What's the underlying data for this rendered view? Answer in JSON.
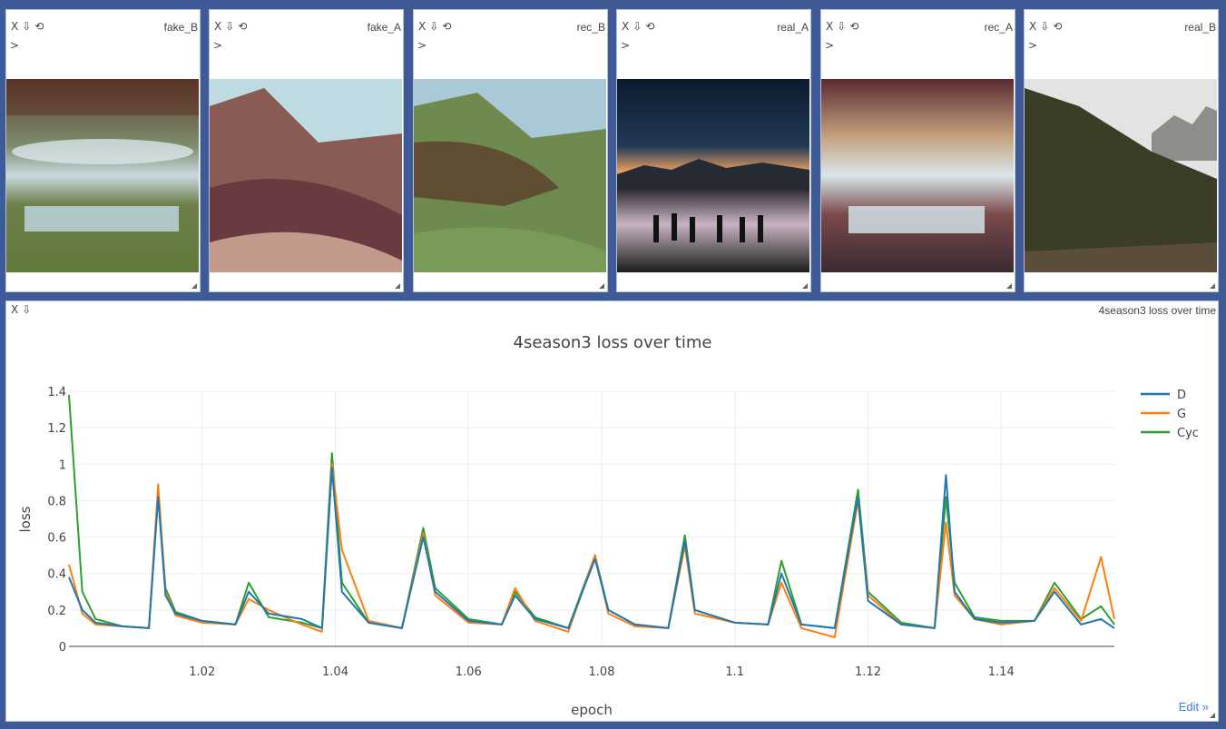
{
  "panes": [
    {
      "title": "fake_B",
      "controls": [
        "X",
        "⇩",
        "⟲"
      ],
      "prompt": ">"
    },
    {
      "title": "fake_A",
      "controls": [
        "X",
        "⇩",
        "⟲"
      ],
      "prompt": ">"
    },
    {
      "title": "rec_B",
      "controls": [
        "X",
        "⇩",
        "⟲"
      ],
      "prompt": ">"
    },
    {
      "title": "real_A",
      "controls": [
        "X",
        "⇩",
        "⟲"
      ],
      "prompt": ">"
    },
    {
      "title": "rec_A",
      "controls": [
        "X",
        "⇩",
        "⟲"
      ],
      "prompt": ">"
    },
    {
      "title": "real_B",
      "controls": [
        "X",
        "⇩",
        "⟲"
      ],
      "prompt": ">"
    }
  ],
  "chart_pane": {
    "title": "4season3 loss over time",
    "controls": [
      "X",
      "⇩"
    ],
    "edit_link": "Edit »"
  },
  "chart_data": {
    "type": "line",
    "title": "4season3 loss over time",
    "xlabel": "epoch",
    "ylabel": "loss",
    "xlim": [
      1.0,
      1.157
    ],
    "ylim": [
      0,
      1.4
    ],
    "x_ticks": [
      1.02,
      1.04,
      1.06,
      1.08,
      1.1,
      1.12,
      1.14
    ],
    "x_tick_labels": [
      "1.02",
      "1.04",
      "1.06",
      "1.08",
      "1.1",
      "1.12",
      "1.14"
    ],
    "y_ticks": [
      0,
      0.2,
      0.4,
      0.6,
      0.8,
      1,
      1.2,
      1.4
    ],
    "y_tick_labels": [
      "0",
      "0.2",
      "0.4",
      "0.6",
      "0.8",
      "1",
      "1.2",
      "1.4"
    ],
    "grid": true,
    "legend_position": "top-right",
    "series": [
      {
        "name": "D",
        "color": "#1f77b4",
        "x": [
          1.0,
          1.002,
          1.004,
          1.008,
          1.012,
          1.0134,
          1.0145,
          1.016,
          1.02,
          1.025,
          1.027,
          1.03,
          1.035,
          1.038,
          1.0395,
          1.041,
          1.045,
          1.05,
          1.0532,
          1.055,
          1.06,
          1.065,
          1.067,
          1.07,
          1.075,
          1.079,
          1.081,
          1.085,
          1.09,
          1.0925,
          1.094,
          1.1,
          1.105,
          1.107,
          1.11,
          1.115,
          1.1185,
          1.12,
          1.125,
          1.13,
          1.1317,
          1.133,
          1.136,
          1.14,
          1.145,
          1.148,
          1.152,
          1.155,
          1.157
        ],
        "y": [
          0.38,
          0.2,
          0.13,
          0.11,
          0.1,
          0.82,
          0.28,
          0.18,
          0.14,
          0.12,
          0.3,
          0.18,
          0.15,
          0.1,
          0.98,
          0.3,
          0.13,
          0.1,
          0.6,
          0.3,
          0.14,
          0.12,
          0.28,
          0.15,
          0.1,
          0.48,
          0.2,
          0.12,
          0.1,
          0.58,
          0.2,
          0.13,
          0.12,
          0.4,
          0.12,
          0.1,
          0.82,
          0.25,
          0.12,
          0.1,
          0.94,
          0.3,
          0.15,
          0.13,
          0.14,
          0.3,
          0.12,
          0.15,
          0.1
        ]
      },
      {
        "name": "G",
        "color": "#ff7f0e",
        "x": [
          1.0,
          1.002,
          1.004,
          1.008,
          1.012,
          1.0134,
          1.0145,
          1.016,
          1.02,
          1.025,
          1.027,
          1.03,
          1.035,
          1.038,
          1.0395,
          1.041,
          1.045,
          1.05,
          1.0532,
          1.055,
          1.06,
          1.065,
          1.067,
          1.07,
          1.075,
          1.079,
          1.081,
          1.085,
          1.09,
          1.0925,
          1.094,
          1.1,
          1.105,
          1.107,
          1.11,
          1.115,
          1.1185,
          1.12,
          1.125,
          1.13,
          1.1317,
          1.133,
          1.136,
          1.14,
          1.145,
          1.148,
          1.152,
          1.155,
          1.157
        ],
        "y": [
          0.45,
          0.18,
          0.12,
          0.11,
          0.1,
          0.89,
          0.3,
          0.17,
          0.13,
          0.12,
          0.26,
          0.2,
          0.12,
          0.08,
          1.0,
          0.53,
          0.14,
          0.1,
          0.62,
          0.28,
          0.13,
          0.12,
          0.32,
          0.14,
          0.08,
          0.5,
          0.18,
          0.11,
          0.1,
          0.55,
          0.18,
          0.13,
          0.12,
          0.35,
          0.1,
          0.05,
          0.8,
          0.28,
          0.12,
          0.1,
          0.68,
          0.28,
          0.15,
          0.12,
          0.14,
          0.32,
          0.14,
          0.49,
          0.15
        ]
      },
      {
        "name": "Cyc",
        "color": "#2ca02c",
        "x": [
          1.0,
          1.002,
          1.004,
          1.008,
          1.012,
          1.0134,
          1.0145,
          1.016,
          1.02,
          1.025,
          1.027,
          1.03,
          1.035,
          1.038,
          1.0395,
          1.041,
          1.045,
          1.05,
          1.0532,
          1.055,
          1.06,
          1.065,
          1.067,
          1.07,
          1.075,
          1.079,
          1.081,
          1.085,
          1.09,
          1.0925,
          1.094,
          1.1,
          1.105,
          1.107,
          1.11,
          1.115,
          1.1185,
          1.12,
          1.125,
          1.13,
          1.1317,
          1.133,
          1.136,
          1.14,
          1.145,
          1.148,
          1.152,
          1.155,
          1.157
        ],
        "y": [
          1.38,
          0.3,
          0.15,
          0.11,
          0.1,
          0.84,
          0.32,
          0.19,
          0.14,
          0.12,
          0.35,
          0.16,
          0.13,
          0.1,
          1.06,
          0.35,
          0.13,
          0.1,
          0.65,
          0.32,
          0.15,
          0.12,
          0.3,
          0.16,
          0.1,
          0.5,
          0.2,
          0.12,
          0.1,
          0.61,
          0.2,
          0.13,
          0.12,
          0.47,
          0.12,
          0.1,
          0.86,
          0.3,
          0.13,
          0.1,
          0.82,
          0.35,
          0.16,
          0.14,
          0.14,
          0.35,
          0.15,
          0.22,
          0.12
        ]
      }
    ]
  }
}
